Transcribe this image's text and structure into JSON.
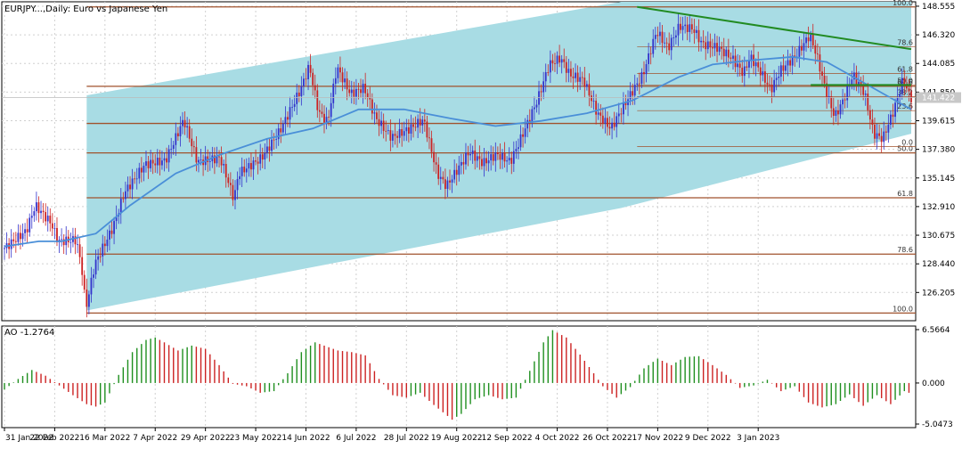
{
  "chart_data": {
    "type": "candlestick",
    "title": "EURJPY...,Daily: Euro vs Japanese Yen",
    "x_ticks": [
      "31 Jan 2022",
      "22 Feb 2022",
      "16 Mar 2022",
      "7 Apr 2022",
      "29 Apr 2022",
      "23 May 2022",
      "14 Jun 2022",
      "6 Jul 2022",
      "28 Jul 2022",
      "19 Aug 2022",
      "12 Sep 2022",
      "4 Oct 2022",
      "26 Oct 2022",
      "17 Nov 2022",
      "9 Dec 2022",
      "3 Jan 2023"
    ],
    "price_axis": {
      "range": [
        124.0,
        148.9
      ],
      "ticks": [
        "148.555",
        "146.320",
        "144.085",
        "141.850",
        "139.615",
        "137.380",
        "135.145",
        "132.910",
        "130.675",
        "128.440",
        "126.205"
      ],
      "ticks_values": [
        148.555,
        146.32,
        144.085,
        141.85,
        139.615,
        137.38,
        135.145,
        132.91,
        130.675,
        128.44,
        126.205
      ],
      "current_price": "141.422",
      "current_value": 141.422
    },
    "grid": true,
    "channel_color": "#a8dce4",
    "candle_colors": {
      "bull": "#3333cc",
      "bear": "#cc2222"
    },
    "ma_color": "#4a8fd8",
    "fib_color": "#a0522d",
    "trendline_color": "#228b22",
    "price_path": [
      [
        0,
        129.6
      ],
      [
        10,
        131.0
      ],
      [
        14,
        133.0
      ],
      [
        21,
        131.6
      ],
      [
        24,
        130.2
      ],
      [
        32,
        130.3
      ],
      [
        35,
        127.4
      ],
      [
        36,
        124.8
      ],
      [
        40,
        128.4
      ],
      [
        48,
        131.3
      ],
      [
        53,
        134.0
      ],
      [
        62,
        136.2
      ],
      [
        71,
        136.5
      ],
      [
        79,
        139.7
      ],
      [
        85,
        136.4
      ],
      [
        95,
        136.7
      ],
      [
        101,
        133.5
      ],
      [
        103,
        135.5
      ],
      [
        113,
        136.7
      ],
      [
        121,
        138.8
      ],
      [
        130,
        142.0
      ],
      [
        134,
        143.9
      ],
      [
        138,
        140.3
      ],
      [
        142,
        139.5
      ],
      [
        146,
        143.8
      ],
      [
        152,
        141.7
      ],
      [
        158,
        142.2
      ],
      [
        163,
        139.8
      ],
      [
        170,
        138.3
      ],
      [
        178,
        139.0
      ],
      [
        184,
        139.7
      ],
      [
        190,
        135.5
      ],
      [
        194,
        134.5
      ],
      [
        204,
        137.2
      ],
      [
        210,
        136.3
      ],
      [
        216,
        137.0
      ],
      [
        222,
        136.4
      ],
      [
        228,
        138.8
      ],
      [
        234,
        141.3
      ],
      [
        239,
        144.0
      ],
      [
        244,
        144.5
      ],
      [
        248,
        143.2
      ],
      [
        254,
        142.8
      ],
      [
        260,
        140.2
      ],
      [
        266,
        139.0
      ],
      [
        274,
        141.5
      ],
      [
        280,
        143.2
      ],
      [
        286,
        146.6
      ],
      [
        291,
        145.3
      ],
      [
        296,
        147.0
      ],
      [
        302,
        146.8
      ],
      [
        306,
        145.6
      ],
      [
        313,
        145.3
      ],
      [
        319,
        144.5
      ],
      [
        324,
        143.3
      ],
      [
        327,
        144.6
      ],
      [
        331,
        143.6
      ],
      [
        336,
        142.0
      ],
      [
        340,
        143.5
      ],
      [
        347,
        144.7
      ],
      [
        353,
        146.3
      ],
      [
        356,
        144.8
      ],
      [
        360,
        142.0
      ],
      [
        364,
        139.9
      ],
      [
        368,
        141.3
      ],
      [
        372,
        143.2
      ],
      [
        377,
        141.8
      ],
      [
        381,
        138.6
      ],
      [
        385,
        138.2
      ],
      [
        390,
        140.5
      ],
      [
        394,
        142.9
      ],
      [
        397,
        141.4
      ]
    ],
    "ma_path": [
      [
        0,
        129.8
      ],
      [
        15,
        130.2
      ],
      [
        25,
        130.2
      ],
      [
        40,
        130.8
      ],
      [
        55,
        133.0
      ],
      [
        75,
        135.5
      ],
      [
        95,
        137.0
      ],
      [
        115,
        138.2
      ],
      [
        135,
        139.0
      ],
      [
        155,
        140.5
      ],
      [
        175,
        140.5
      ],
      [
        195,
        139.8
      ],
      [
        215,
        139.2
      ],
      [
        235,
        139.6
      ],
      [
        255,
        140.2
      ],
      [
        275,
        141.2
      ],
      [
        295,
        143.0
      ],
      [
        310,
        144.0
      ],
      [
        325,
        144.3
      ],
      [
        345,
        144.6
      ],
      [
        360,
        144.2
      ],
      [
        375,
        142.7
      ],
      [
        392,
        141.0
      ],
      [
        397,
        140.5
      ]
    ],
    "channel": {
      "upper": [
        [
          36,
          141.6
        ],
        [
          270,
          148.9
        ],
        [
          397,
          154.5
        ]
      ],
      "lower": [
        [
          36,
          124.8
        ],
        [
          270,
          132.8
        ],
        [
          397,
          138.6
        ]
      ]
    },
    "trendline": [
      [
        277,
        148.5
      ],
      [
        397,
        145.2
      ]
    ],
    "trendline_short": [
      [
        353,
        142.4
      ],
      [
        397,
        142.4
      ]
    ],
    "fib_main": {
      "x_start": 36,
      "x_end": 397,
      "levels": [
        {
          "label": "100.0",
          "value": 148.5
        },
        {
          "label": "61.8",
          "value": 142.3
        },
        {
          "label": "",
          "value": 139.4
        },
        {
          "label": "50.0",
          "value": 137.1
        },
        {
          "label": "61.8",
          "value": 133.6
        },
        {
          "label": "78.6",
          "value": 129.2
        },
        {
          "label": "100.0",
          "value": 124.6
        }
      ]
    },
    "fib_small": {
      "x_start": 277,
      "x_end": 397,
      "levels": [
        {
          "label": "78.6",
          "value": 145.4
        },
        {
          "label": "61.8",
          "value": 143.3
        },
        {
          "label": "50.0",
          "value": 142.4
        },
        {
          "label": "38.2",
          "value": 141.5
        },
        {
          "label": "23.6",
          "value": 140.4
        },
        {
          "label": "0.0",
          "value": 137.6
        }
      ]
    },
    "ao_indicator": {
      "name": "AO",
      "value": "-1.2764",
      "axis_ticks": [
        "6.5664",
        "0.000",
        "-5.0473"
      ],
      "axis_values": [
        6.5664,
        0,
        -5.0473
      ],
      "range": [
        -5.0473,
        6.5664
      ],
      "colors": {
        "up": "#1f8f1f",
        "down": "#cc2222"
      },
      "path": [
        [
          0,
          -0.8
        ],
        [
          6,
          0.5
        ],
        [
          12,
          1.6
        ],
        [
          18,
          0.9
        ],
        [
          24,
          -0.3
        ],
        [
          30,
          -1.5
        ],
        [
          36,
          -2.6
        ],
        [
          40,
          -2.9
        ],
        [
          44,
          -2.4
        ],
        [
          50,
          1.0
        ],
        [
          56,
          3.8
        ],
        [
          62,
          5.3
        ],
        [
          66,
          5.6
        ],
        [
          70,
          5.0
        ],
        [
          76,
          4.0
        ],
        [
          82,
          4.6
        ],
        [
          88,
          4.2
        ],
        [
          94,
          2.2
        ],
        [
          100,
          -0.1
        ],
        [
          106,
          -0.4
        ],
        [
          112,
          -1.2
        ],
        [
          118,
          -1.0
        ],
        [
          124,
          1.2
        ],
        [
          130,
          3.8
        ],
        [
          136,
          5.0
        ],
        [
          140,
          4.6
        ],
        [
          146,
          4.0
        ],
        [
          152,
          3.8
        ],
        [
          158,
          3.4
        ],
        [
          164,
          0.5
        ],
        [
          170,
          -1.5
        ],
        [
          176,
          -1.8
        ],
        [
          182,
          -1.2
        ],
        [
          188,
          -2.7
        ],
        [
          192,
          -3.6
        ],
        [
          196,
          -4.5
        ],
        [
          200,
          -3.8
        ],
        [
          206,
          -2.0
        ],
        [
          212,
          -1.5
        ],
        [
          218,
          -2.0
        ],
        [
          224,
          -1.8
        ],
        [
          230,
          1.5
        ],
        [
          236,
          5.0
        ],
        [
          240,
          6.5
        ],
        [
          246,
          5.6
        ],
        [
          252,
          3.5
        ],
        [
          258,
          1.2
        ],
        [
          262,
          -0.4
        ],
        [
          268,
          -1.8
        ],
        [
          274,
          -0.5
        ],
        [
          280,
          1.8
        ],
        [
          286,
          3.0
        ],
        [
          292,
          2.2
        ],
        [
          298,
          3.2
        ],
        [
          304,
          3.3
        ],
        [
          310,
          2.2
        ],
        [
          316,
          1.0
        ],
        [
          322,
          -0.6
        ],
        [
          328,
          -0.3
        ],
        [
          334,
          0.4
        ],
        [
          340,
          -1.0
        ],
        [
          346,
          -0.4
        ],
        [
          352,
          -2.4
        ],
        [
          358,
          -3.0
        ],
        [
          364,
          -2.6
        ],
        [
          370,
          -1.4
        ],
        [
          376,
          -2.8
        ],
        [
          382,
          -1.5
        ],
        [
          388,
          -2.6
        ],
        [
          394,
          -1.0
        ],
        [
          397,
          -1.3
        ]
      ]
    }
  }
}
